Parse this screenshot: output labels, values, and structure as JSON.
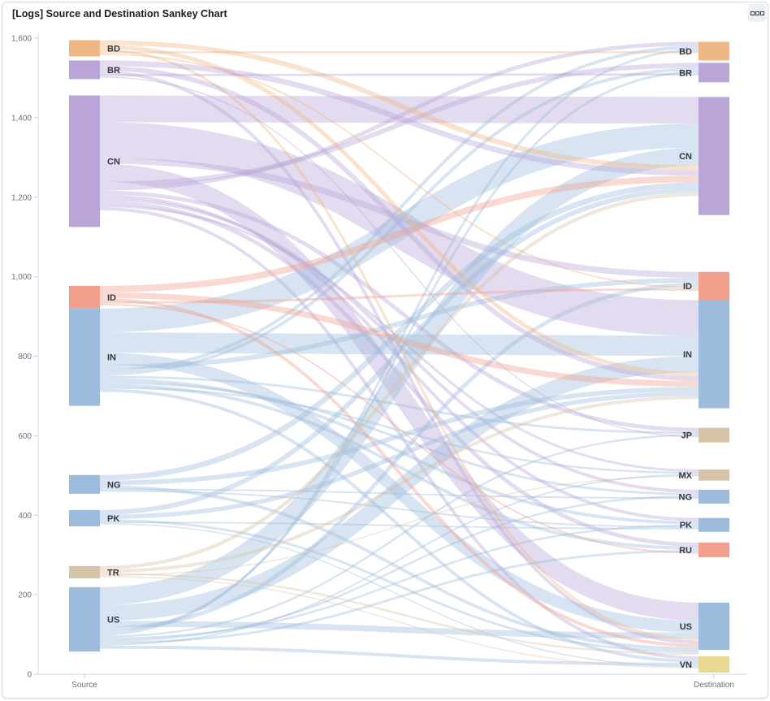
{
  "panel": {
    "title": "[Logs] Source and Destination Sankey Chart",
    "menu_icon": "ellipsis-icon"
  },
  "chart_data": {
    "type": "sankey",
    "yaxis": {
      "range": [
        0,
        1600
      ],
      "ticks": [
        0,
        200,
        400,
        600,
        800,
        1000,
        1200,
        1400,
        1600
      ],
      "tick_labels": [
        "0",
        "200",
        "400",
        "600",
        "800",
        "1,000",
        "1,200",
        "1,400",
        "1,600"
      ]
    },
    "xaxis": {
      "categories": [
        "Source",
        "Destination"
      ]
    },
    "colors": {
      "blue": "#9dbbdc",
      "purple": "#b9a6d6",
      "orange": "#efb785",
      "salmon": "#f1a08e",
      "tan": "#d6c4a8"
    },
    "source_nodes": [
      {
        "label": "BD",
        "range": [
          1554,
          1595
        ],
        "color": "#efb785"
      },
      {
        "label": "BR",
        "range": [
          1497,
          1544
        ],
        "color": "#b9a6d6"
      },
      {
        "label": "CN",
        "range": [
          1125,
          1456
        ],
        "color": "#b9a6d6"
      },
      {
        "label": "ID",
        "range": [
          920,
          977
        ],
        "color": "#f1a08e"
      },
      {
        "label": "IN",
        "range": [
          675,
          920
        ],
        "color": "#9dbbdc"
      },
      {
        "label": "NG",
        "range": [
          454,
          501
        ],
        "color": "#9dbbdc"
      },
      {
        "label": "PK",
        "range": [
          372,
          413
        ],
        "color": "#9dbbdc"
      },
      {
        "label": "TR",
        "range": [
          241,
          272
        ],
        "color": "#d6c4a8"
      },
      {
        "label": "US",
        "range": [
          57,
          219
        ],
        "color": "#9dbbdc"
      }
    ],
    "destination_nodes": [
      {
        "label": "BD",
        "range": [
          1544,
          1591
        ],
        "color": "#efb785"
      },
      {
        "label": "BR",
        "range": [
          1489,
          1538
        ],
        "color": "#b9a6d6"
      },
      {
        "label": "CN",
        "range": [
          1155,
          1452
        ],
        "color": "#b9a6d6"
      },
      {
        "label": "ID",
        "range": [
          941,
          1012
        ],
        "color": "#f1a08e"
      },
      {
        "label": "IN",
        "range": [
          669,
          941
        ],
        "color": "#9dbbdc"
      },
      {
        "label": "JP",
        "range": [
          583,
          620
        ],
        "color": "#d6c4a8"
      },
      {
        "label": "MX",
        "range": [
          487,
          515
        ],
        "color": "#d6c4a8"
      },
      {
        "label": "NG",
        "range": [
          429,
          464
        ],
        "color": "#9dbbdc"
      },
      {
        "label": "PK",
        "range": [
          358,
          393
        ],
        "color": "#9dbbdc"
      },
      {
        "label": "RU",
        "range": [
          294,
          331
        ],
        "color": "#f1a08e"
      },
      {
        "label": "US",
        "range": [
          61,
          180
        ],
        "color": "#9dbbdc"
      },
      {
        "label": "VN",
        "range": [
          4,
          45
        ],
        "color": "#e7d98f"
      }
    ],
    "links": [
      [
        "CN",
        "CN",
        67
      ],
      [
        "CN",
        "IN",
        90
      ],
      [
        "CN",
        "ID",
        15
      ],
      [
        "CN",
        "US",
        45
      ],
      [
        "CN",
        "BR",
        12
      ],
      [
        "CN",
        "BD",
        10
      ],
      [
        "CN",
        "JP",
        10
      ],
      [
        "CN",
        "PK",
        8
      ],
      [
        "CN",
        "NG",
        8
      ],
      [
        "CN",
        "RU",
        10
      ],
      [
        "CN",
        "MX",
        6
      ],
      [
        "CN",
        "VN",
        8
      ],
      [
        "IN",
        "CN",
        60
      ],
      [
        "IN",
        "IN",
        51
      ],
      [
        "IN",
        "US",
        30
      ],
      [
        "IN",
        "ID",
        12
      ],
      [
        "IN",
        "BD",
        8
      ],
      [
        "IN",
        "BR",
        8
      ],
      [
        "IN",
        "JP",
        6
      ],
      [
        "IN",
        "PK",
        8
      ],
      [
        "IN",
        "NG",
        6
      ],
      [
        "IN",
        "RU",
        8
      ],
      [
        "IN",
        "MX",
        5
      ],
      [
        "IN",
        "VN",
        8
      ],
      [
        "US",
        "CN",
        45
      ],
      [
        "US",
        "IN",
        40
      ],
      [
        "US",
        "US",
        15
      ],
      [
        "US",
        "ID",
        10
      ],
      [
        "US",
        "BR",
        6
      ],
      [
        "US",
        "BD",
        6
      ],
      [
        "US",
        "JP",
        5
      ],
      [
        "US",
        "PK",
        5
      ],
      [
        "US",
        "NG",
        5
      ],
      [
        "US",
        "RU",
        6
      ],
      [
        "US",
        "MX",
        4
      ],
      [
        "US",
        "VN",
        8
      ],
      [
        "BD",
        "CN",
        12
      ],
      [
        "BD",
        "IN",
        10
      ],
      [
        "BD",
        "US",
        6
      ],
      [
        "BD",
        "BD",
        5
      ],
      [
        "BD",
        "ID",
        4
      ],
      [
        "BR",
        "CN",
        14
      ],
      [
        "BR",
        "IN",
        12
      ],
      [
        "BR",
        "US",
        8
      ],
      [
        "BR",
        "BR",
        6
      ],
      [
        "BR",
        "JP",
        3
      ],
      [
        "ID",
        "CN",
        16
      ],
      [
        "ID",
        "IN",
        15
      ],
      [
        "ID",
        "US",
        8
      ],
      [
        "ID",
        "ID",
        6
      ],
      [
        "ID",
        "RU",
        4
      ],
      [
        "NG",
        "CN",
        14
      ],
      [
        "NG",
        "IN",
        12
      ],
      [
        "NG",
        "US",
        8
      ],
      [
        "NG",
        "NG",
        4
      ],
      [
        "NG",
        "PK",
        4
      ],
      [
        "PK",
        "CN",
        12
      ],
      [
        "PK",
        "IN",
        11
      ],
      [
        "PK",
        "US",
        6
      ],
      [
        "PK",
        "PK",
        4
      ],
      [
        "PK",
        "VN",
        3
      ],
      [
        "TR",
        "CN",
        9
      ],
      [
        "TR",
        "IN",
        8
      ],
      [
        "TR",
        "US",
        5
      ],
      [
        "TR",
        "MX",
        3
      ],
      [
        "TR",
        "VN",
        3
      ]
    ]
  }
}
